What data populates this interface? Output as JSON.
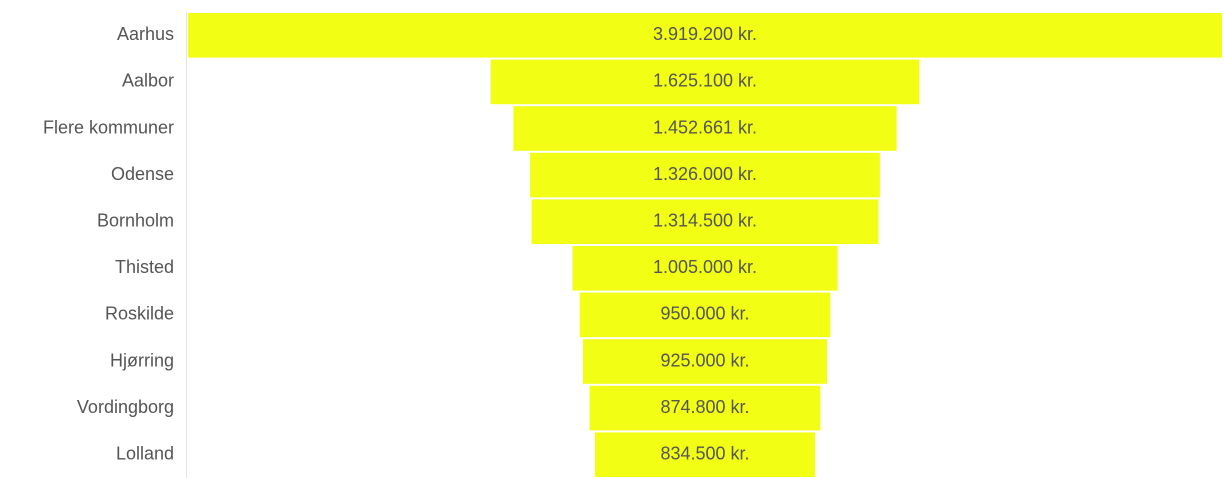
{
  "chart_data": {
    "type": "funnel",
    "categories": [
      "Aarhus",
      "Aalbor",
      "Flere kommuner",
      "Odense",
      "Bornholm",
      "Thisted",
      "Roskilde",
      "Hjørring",
      "Vordingborg",
      "Lolland"
    ],
    "values": [
      3919200,
      1625100,
      1452661,
      1326000,
      1314500,
      1005000,
      950000,
      925000,
      874800,
      834500
    ],
    "value_labels": [
      "3.919.200 kr.",
      "1.625.100 kr.",
      "1.452.661 kr.",
      "1.326.000 kr.",
      "1.314.500 kr.",
      "1.005.000 kr.",
      "950.000 kr.",
      "925.000 kr.",
      "874.800 kr.",
      "834.500 kr."
    ],
    "color": "#f2ff14"
  }
}
